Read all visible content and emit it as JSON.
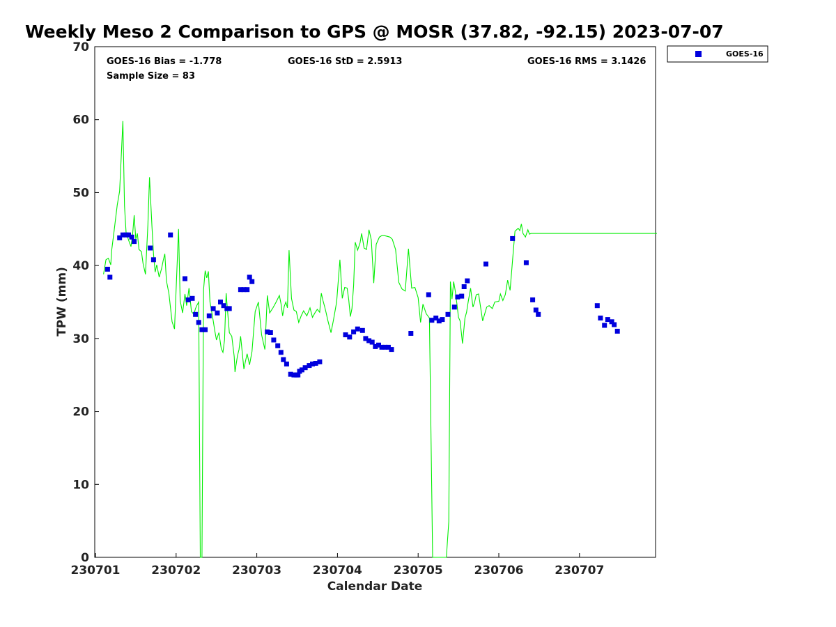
{
  "chart_data": {
    "type": "scatter",
    "title": "Weekly Meso 2 Comparison to GPS @ MOSR (37.82, -92.15) 2023-07-07",
    "xlabel": "Calendar Date",
    "ylabel": "TPW (mm)",
    "xlim": [
      0,
      7
    ],
    "ylim": [
      0,
      70
    ],
    "x_ticks": [
      {
        "value": 0,
        "label": "230701"
      },
      {
        "value": 1,
        "label": "230702"
      },
      {
        "value": 2,
        "label": "230703"
      },
      {
        "value": 3,
        "label": "230704"
      },
      {
        "value": 4,
        "label": "230705"
      },
      {
        "value": 5,
        "label": "230706"
      },
      {
        "value": 6,
        "label": "230707"
      }
    ],
    "y_ticks": [
      0,
      10,
      20,
      30,
      40,
      50,
      60,
      70
    ],
    "stats": {
      "bias": "GOES-16 Bias = -1.778",
      "std": "GOES-16 StD = 2.5913",
      "rms": "GOES-16 RMS = 3.1426",
      "sample": "Sample Size = 83"
    },
    "legend": {
      "label": "GOES-16",
      "position": "top-right"
    },
    "colors": {
      "goes": "#0000dd",
      "gps": "#00ee00"
    },
    "series": [
      {
        "name": "GPS",
        "kind": "line",
        "x": [
          0.1,
          0.13,
          0.16,
          0.19,
          0.2,
          0.23,
          0.27,
          0.3,
          0.34,
          0.36,
          0.38,
          0.39,
          0.41,
          0.44,
          0.46,
          0.48,
          0.5,
          0.52,
          0.54,
          0.57,
          0.59,
          0.62,
          0.65,
          0.67,
          0.7,
          0.72,
          0.74,
          0.76,
          0.79,
          0.82,
          0.84,
          0.86,
          0.88,
          0.91,
          0.95,
          0.98,
          1.03,
          1.05,
          1.08,
          1.11,
          1.13,
          1.16,
          1.19,
          1.22,
          1.24,
          1.26,
          1.28,
          1.3,
          1.32,
          1.34,
          1.36,
          1.38,
          1.4,
          1.42,
          1.44,
          1.46,
          1.48,
          1.5,
          1.53,
          1.56,
          1.58,
          1.6,
          1.62,
          1.66,
          1.69,
          1.72,
          1.73,
          1.76,
          1.78,
          1.8,
          1.84,
          1.86,
          1.88,
          1.91,
          1.94,
          1.98,
          2.02,
          2.06,
          2.1,
          2.13,
          2.16,
          2.2,
          2.24,
          2.28,
          2.3,
          2.32,
          2.34,
          2.36,
          2.38,
          2.4,
          2.43,
          2.46,
          2.49,
          2.52,
          2.55,
          2.58,
          2.62,
          2.66,
          2.69,
          2.72,
          2.75,
          2.78,
          2.8,
          2.82,
          2.84,
          2.86,
          2.88,
          2.92,
          2.95,
          2.99,
          3.03,
          3.06,
          3.09,
          3.12,
          3.14,
          3.16,
          3.18,
          3.2,
          3.22,
          3.25,
          3.28,
          3.3,
          3.33,
          3.36,
          3.39,
          3.42,
          3.45,
          3.48,
          3.52,
          3.55,
          3.58,
          3.62,
          3.65,
          3.68,
          3.72,
          3.76,
          3.8,
          3.84,
          3.88,
          3.92,
          3.96,
          4.0,
          4.03,
          4.06,
          4.1,
          4.14,
          4.18,
          4.22,
          4.24,
          4.26,
          4.28,
          4.3,
          4.33,
          4.35,
          4.38,
          4.4,
          4.42,
          4.44,
          4.46,
          4.48,
          4.5,
          4.52,
          4.55,
          4.58,
          4.6,
          4.62,
          4.65,
          4.68,
          4.7,
          4.72,
          4.75,
          4.8,
          4.85,
          4.88,
          4.92,
          4.95,
          5.0,
          5.02,
          5.05,
          5.08,
          5.11,
          5.14,
          5.17,
          5.2,
          5.22,
          5.24,
          5.26,
          5.28,
          5.3,
          5.33,
          5.36,
          5.38,
          5.4,
          5.42,
          5.44,
          5.46,
          5.48,
          5.5,
          5.52,
          5.56,
          5.6,
          5.63,
          5.66,
          5.69,
          5.72,
          5.75,
          5.78,
          5.8,
          5.82,
          5.84,
          5.86,
          5.88,
          5.9,
          5.92,
          5.94,
          5.96,
          5.98,
          6.0,
          6.02,
          6.05,
          6.08,
          6.11,
          6.14,
          6.17,
          6.2,
          6.23,
          6.26,
          6.29,
          6.32,
          6.35,
          6.38,
          6.41,
          6.44,
          6.47,
          6.5,
          6.53,
          6.56,
          6.59,
          6.62,
          6.65,
          6.68,
          6.71,
          6.74,
          6.77,
          6.8,
          6.83,
          6.86,
          6.88,
          6.9,
          6.93,
          6.96
        ],
        "y": [
          38.8,
          40.8,
          41,
          40.1,
          42,
          44.6,
          48.3,
          50.2,
          59.8,
          48.2,
          44.5,
          44.2,
          43.5,
          42.6,
          44.2,
          46.9,
          43.6,
          44.4,
          42.2,
          41.9,
          40.3,
          38.8,
          45.6,
          52.1,
          45.4,
          41.5,
          39.1,
          40.1,
          38.4,
          39.6,
          40.7,
          41.6,
          37.9,
          36.2,
          32.3,
          31.3,
          45,
          35.2,
          33.5,
          36.1,
          34.5,
          36.9,
          33.7,
          33.3,
          34.1,
          34.6,
          35,
          0,
          0,
          36.7,
          39.3,
          38.3,
          39.2,
          35,
          33.7,
          32.4,
          31,
          29.8,
          30.8,
          28.6,
          28.1,
          29.8,
          36.2,
          30.8,
          30.3,
          27.5,
          25.4,
          27.6,
          28.5,
          30.3,
          25.8,
          26.9,
          27.9,
          26.4,
          28.2,
          33.7,
          35,
          30.5,
          28.5,
          35.9,
          33.5,
          34.2,
          35,
          35.9,
          34.8,
          33.1,
          34.4,
          35,
          34.2,
          42.1,
          35.5,
          33.9,
          33.7,
          32.2,
          33.1,
          33.8,
          33.1,
          34.2,
          32.9,
          33.5,
          34,
          33.6,
          36.2,
          35.2,
          34.4,
          33.5,
          32.5,
          30.8,
          32.5,
          35,
          40.8,
          35.5,
          37,
          36.9,
          35.3,
          33,
          34.1,
          37.3,
          43.2,
          42.1,
          43.1,
          44.4,
          42.4,
          42.2,
          44.9,
          43.5,
          37.6,
          42.9,
          43.9,
          44.1,
          44.1,
          44,
          43.9,
          43.6,
          42.2,
          37.7,
          36.8,
          36.5,
          42.3,
          36.9,
          37,
          35.6,
          32.2,
          34.7,
          33.4,
          32.8,
          0,
          0,
          0,
          0,
          0,
          0,
          0,
          0,
          4.9,
          37.8,
          35.4,
          37.8,
          36.5,
          34.8,
          32.9,
          32.4,
          29.3,
          32.8,
          33.6,
          35,
          36.9,
          34.3,
          35,
          36,
          36.1,
          32.4,
          34.3,
          34.5,
          34.1,
          35,
          35.1,
          36.1,
          35.2,
          36,
          38,
          36.6,
          40.7,
          44.7,
          44.9,
          45.1,
          44.8,
          45.7,
          44.4,
          43.9,
          44.9,
          44.3,
          44.4,
          44.4,
          44.4,
          44.4,
          44.4,
          44.4,
          44.4,
          44.4,
          44.4,
          44.4,
          44.4,
          44.4,
          44.4,
          44.4,
          44.4,
          44.4,
          44.4,
          44.4,
          44.4,
          44.4,
          44.4,
          44.4,
          44.4,
          44.4,
          44.4,
          44.4,
          44.4,
          44.4,
          44.4,
          44.4,
          44.4,
          44.4,
          44.4,
          44.4,
          44.4,
          44.4,
          44.4,
          44.4,
          44.4,
          44.4,
          44.4,
          44.4,
          44.4,
          44.4,
          44.4,
          44.4,
          44.4,
          44.4,
          44.4,
          44.4,
          44.4,
          44.4,
          44.4,
          44.4,
          44.4,
          44.4,
          44.4,
          44.4,
          44.4
        ]
      },
      {
        "name": "GOES-16",
        "kind": "scatter",
        "x": [
          0.15,
          0.18,
          0.3,
          0.34,
          0.38,
          0.41,
          0.45,
          0.48,
          0.68,
          0.72,
          0.93,
          1.11,
          1.15,
          1.2,
          1.24,
          1.28,
          1.32,
          1.36,
          1.41,
          1.46,
          1.51,
          1.55,
          1.59,
          1.63,
          1.66,
          1.8,
          1.84,
          1.88,
          1.91,
          1.94,
          2.13,
          2.17,
          2.21,
          2.26,
          2.3,
          2.33,
          2.37,
          2.42,
          2.46,
          2.49,
          2.51,
          2.53,
          2.56,
          2.6,
          2.65,
          2.69,
          2.73,
          2.78,
          3.1,
          3.15,
          3.2,
          3.25,
          3.31,
          3.35,
          3.39,
          3.43,
          3.47,
          3.51,
          3.55,
          3.59,
          3.63,
          3.67,
          3.91,
          4.13,
          4.17,
          4.22,
          4.26,
          4.3,
          4.37,
          4.45,
          4.49,
          4.54,
          4.57,
          4.61,
          4.84,
          5.17,
          5.34,
          5.42,
          5.46,
          5.49,
          6.22,
          6.26,
          6.31,
          6.35,
          6.4,
          6.43,
          6.47
        ],
        "y": [
          39.5,
          38.4,
          43.8,
          44.2,
          44.2,
          44.2,
          43.9,
          43.3,
          42.4,
          40.8,
          44.2,
          38.2,
          35.3,
          35.5,
          33.3,
          32.2,
          31.2,
          31.2,
          33.1,
          34.1,
          33.5,
          35,
          34.5,
          34.1,
          34.1,
          36.7,
          36.7,
          36.7,
          38.4,
          37.8,
          30.9,
          30.8,
          29.8,
          29,
          28.1,
          27.1,
          26.5,
          25.1,
          25,
          25,
          25,
          25.5,
          25.7,
          26,
          26.3,
          26.5,
          26.6,
          26.8,
          30.5,
          30.2,
          30.9,
          31.3,
          31.1,
          30,
          29.7,
          29.5,
          28.9,
          29.1,
          28.8,
          28.8,
          28.8,
          28.5,
          30.7,
          36,
          32.5,
          32.8,
          32.4,
          32.6,
          33.3,
          34.3,
          35.7,
          35.8,
          37.1,
          37.9,
          40.2,
          43.7,
          40.4,
          35.3,
          33.9,
          33.3,
          34.5,
          32.8,
          31.8,
          32.6,
          32.3,
          31.9,
          31
        ]
      }
    ]
  }
}
